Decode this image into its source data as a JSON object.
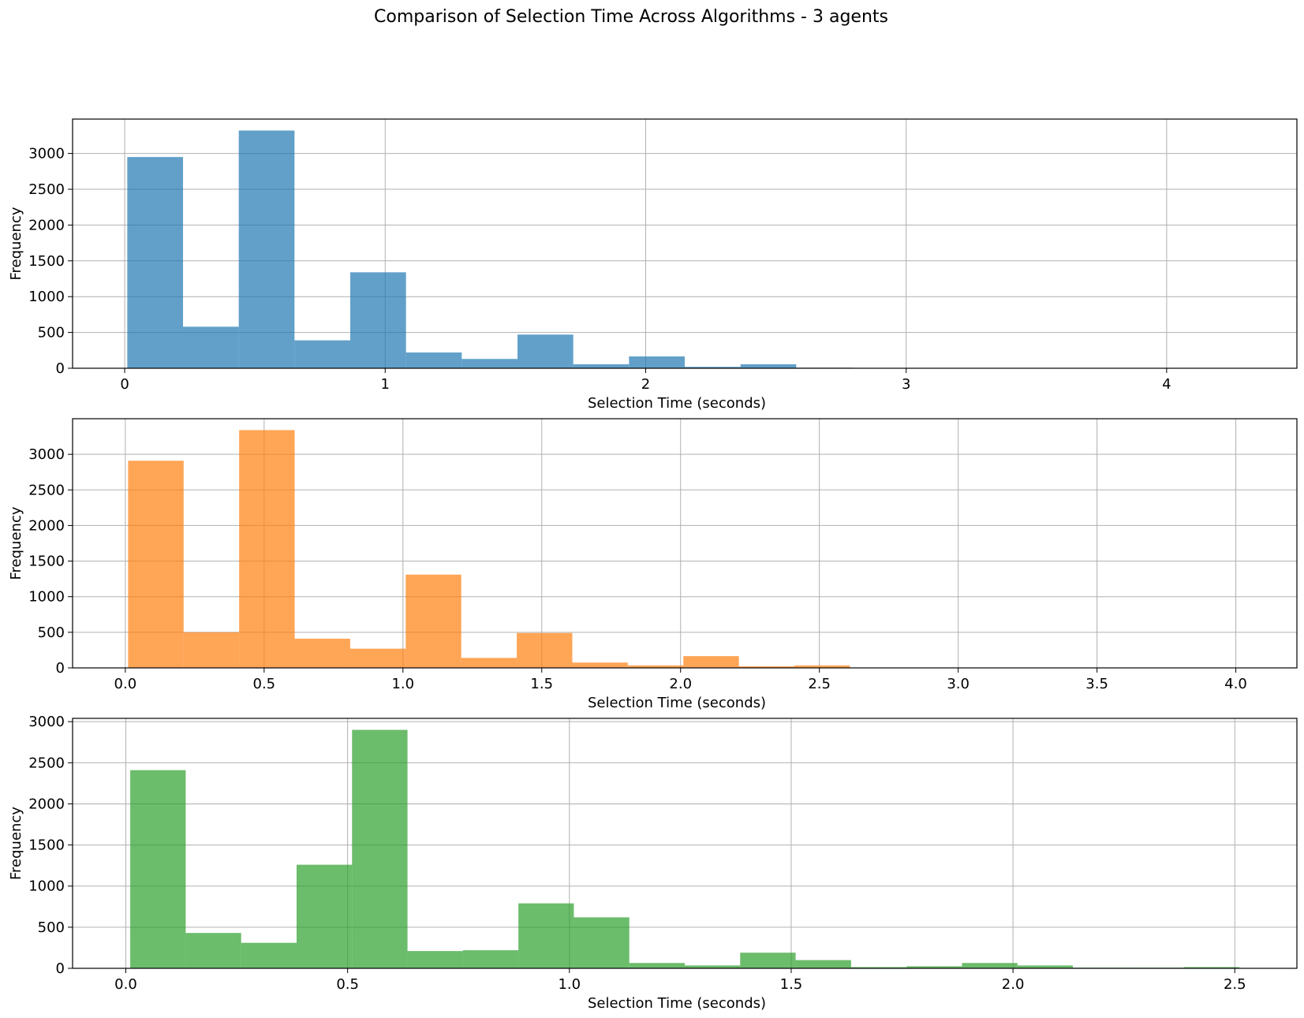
{
  "title": "Comparison of Selection Time Across Algorithms - 3 agents",
  "chart_data": [
    {
      "type": "bar",
      "subtype": "histogram",
      "color": "#1f77b4",
      "alpha": 0.7,
      "xlabel": "Selection Time (seconds)",
      "ylabel": "Frequency",
      "xlim": [
        -0.2,
        4.5
      ],
      "ylim": [
        0,
        3480
      ],
      "xticks": [
        0,
        1,
        2,
        3,
        4
      ],
      "xtick_labels": [
        "0",
        "1",
        "2",
        "3",
        "4"
      ],
      "yticks": [
        0,
        500,
        1000,
        1500,
        2000,
        2500,
        3000
      ],
      "ytick_labels": [
        "0",
        "500",
        "1000",
        "1500",
        "2000",
        "2500",
        "3000"
      ],
      "grid": true,
      "bin_start": 0.01,
      "bin_width": 0.214,
      "values": [
        2950,
        580,
        3320,
        390,
        1340,
        220,
        130,
        470,
        55,
        165,
        20,
        55,
        8,
        0,
        5,
        5,
        0,
        0,
        0,
        0
      ]
    },
    {
      "type": "bar",
      "subtype": "histogram",
      "color": "#ff7f0e",
      "alpha": 0.7,
      "xlabel": "Selection Time (seconds)",
      "ylabel": "Frequency",
      "xlim": [
        -0.19,
        4.22
      ],
      "ylim": [
        0,
        3500
      ],
      "xticks": [
        0.0,
        0.5,
        1.0,
        1.5,
        2.0,
        2.5,
        3.0,
        3.5,
        4.0
      ],
      "xtick_labels": [
        "0.0",
        "0.5",
        "1.0",
        "1.5",
        "2.0",
        "2.5",
        "3.0",
        "3.5",
        "4.0"
      ],
      "yticks": [
        0,
        500,
        1000,
        1500,
        2000,
        2500,
        3000
      ],
      "ytick_labels": [
        "0",
        "500",
        "1000",
        "1500",
        "2000",
        "2500",
        "3000"
      ],
      "grid": true,
      "bin_start": 0.01,
      "bin_width": 0.2,
      "values": [
        2910,
        500,
        3340,
        410,
        270,
        1310,
        140,
        490,
        75,
        35,
        165,
        22,
        35,
        0,
        0,
        0,
        0,
        0,
        0,
        0
      ]
    },
    {
      "type": "bar",
      "subtype": "histogram",
      "color": "#2ca02c",
      "alpha": 0.7,
      "xlabel": "Selection Time (seconds)",
      "ylabel": "Frequency",
      "xlim": [
        -0.12,
        2.64
      ],
      "ylim": [
        0,
        3040
      ],
      "xticks": [
        0.0,
        0.5,
        1.0,
        1.5,
        2.0,
        2.5
      ],
      "xtick_labels": [
        "0.0",
        "0.5",
        "1.0",
        "1.5",
        "2.0",
        "2.5"
      ],
      "yticks": [
        0,
        500,
        1000,
        1500,
        2000,
        2500,
        3000
      ],
      "ytick_labels": [
        "0",
        "500",
        "1000",
        "1500",
        "2000",
        "2500",
        "3000"
      ],
      "grid": true,
      "bin_start": 0.01,
      "bin_width": 0.125,
      "values": [
        2410,
        430,
        310,
        1260,
        2900,
        210,
        220,
        790,
        620,
        65,
        35,
        190,
        100,
        15,
        25,
        65,
        35,
        8,
        8,
        15
      ]
    }
  ]
}
